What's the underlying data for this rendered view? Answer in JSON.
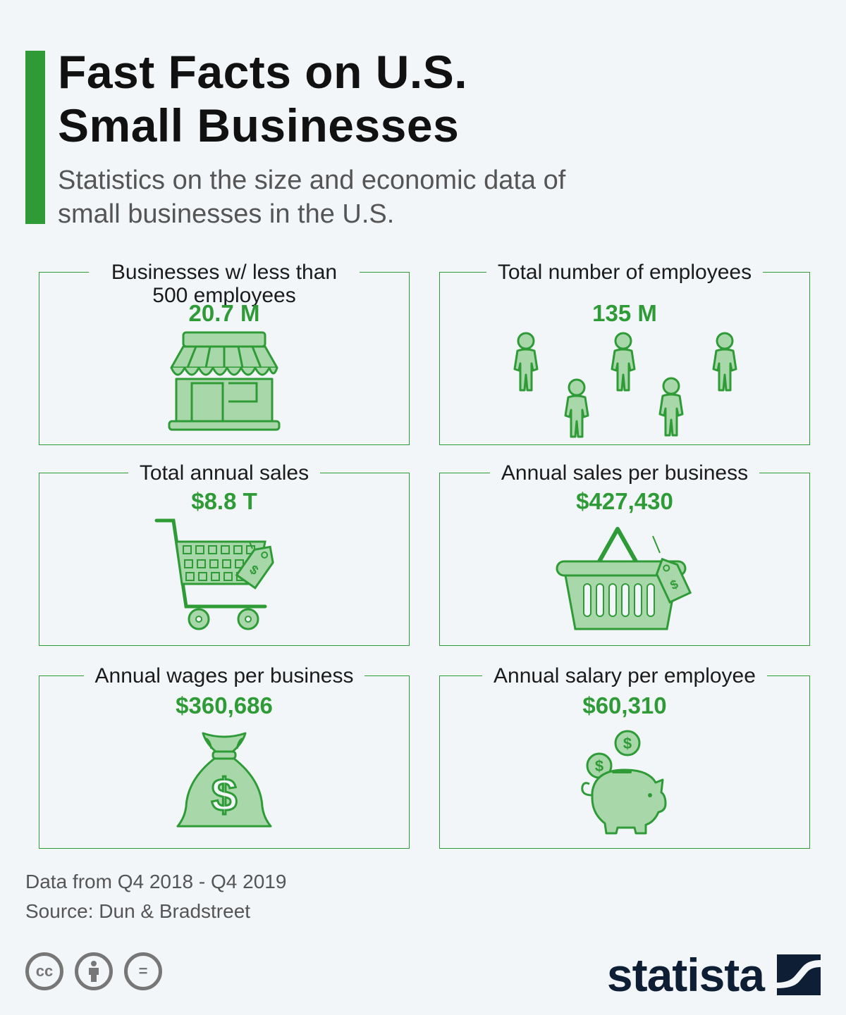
{
  "header": {
    "title_line1": "Fast Facts on U.S.",
    "title_line2": "Small Businesses",
    "subtitle_line1": "Statistics on the size and economic data of",
    "subtitle_line2": "small businesses in the U.S."
  },
  "cards": [
    {
      "label_line1": "Businesses w/ less than",
      "label_line2": "500 employees",
      "value": "20.7 M",
      "icon": "storefront-icon"
    },
    {
      "label_line1": "Total number of employees",
      "value": "135 M",
      "icon": "people-icon"
    },
    {
      "label_line1": "Total annual sales",
      "value": "$8.8 T",
      "icon": "shopping-cart-icon"
    },
    {
      "label_line1": "Annual sales per business",
      "value": "$427,430",
      "icon": "shopping-basket-icon"
    },
    {
      "label_line1": "Annual wages per business",
      "value": "$360,686",
      "icon": "money-bag-icon"
    },
    {
      "label_line1": "Annual salary per employee",
      "value": "$60,310",
      "icon": "piggy-bank-icon"
    }
  ],
  "footer": {
    "note": "Data from Q4 2018 - Q4 2019",
    "source": "Source: Dun & Bradstreet",
    "license_icons": [
      "cc-icon",
      "attribution-icon",
      "no-derivatives-icon"
    ],
    "cc_text": "cc",
    "nd_text": "=",
    "brand": "statista"
  },
  "colors": {
    "accent": "#2e9b37",
    "icon_fill": "#a8d8a9",
    "brand": "#0e1f35",
    "background": "#f3f6f9"
  }
}
